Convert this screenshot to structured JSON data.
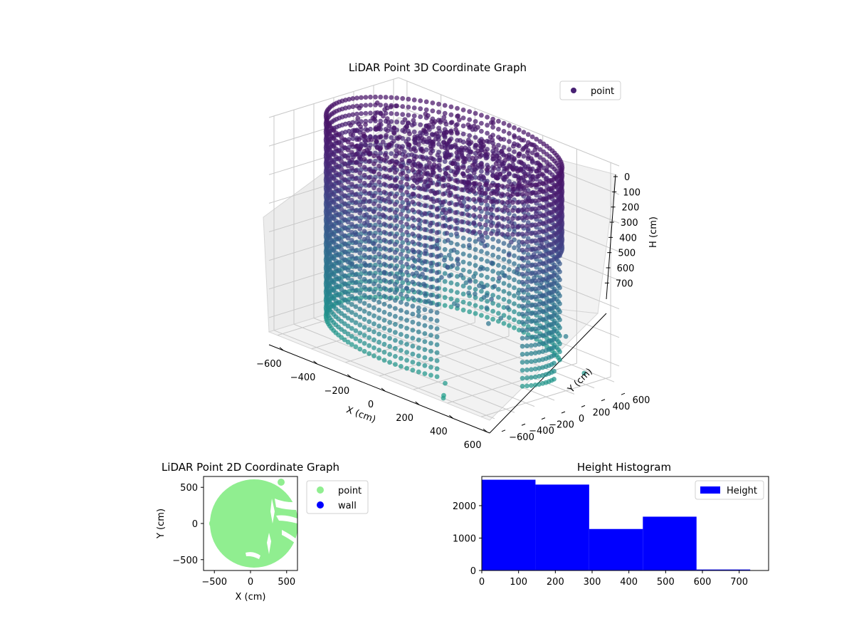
{
  "chart_data": [
    {
      "type": "scatter",
      "projection": "3d",
      "title": "LiDAR Point 3D Coordinate Graph",
      "xlabel": "X (cm)",
      "ylabel": "Y (cm)",
      "zlabel": "H (cm)",
      "xticks": [
        "−600",
        "−400",
        "−200",
        "0",
        "200",
        "400",
        "600"
      ],
      "yticks": [
        "−600",
        "−400",
        "−200",
        "0",
        "200",
        "400",
        "600"
      ],
      "zticks": [
        "0",
        "100",
        "200",
        "300",
        "400",
        "500",
        "600",
        "700"
      ],
      "xlim": [
        -650,
        650
      ],
      "ylim": [
        -650,
        650
      ],
      "zlim": [
        0,
        750
      ],
      "z_axis_inverted": true,
      "colormap": "viridis",
      "legend": {
        "placement": "upper-right",
        "entries": [
          {
            "label": "point",
            "color": "#482173"
          }
        ]
      },
      "series": [
        {
          "name": "point",
          "description_of_shape": "cylindrical wall of points of radius about 600 cm spanning H 0–700 cm, with a dense ceiling cluster near H 0–100 cm",
          "wall_radius": 600,
          "height_range": [
            0,
            700
          ],
          "outlier_points": [
            {
              "x": 300,
              "y": -500,
              "h": 720
            },
            {
              "x": 350,
              "y": -600,
              "h": 740
            },
            {
              "x": 360,
              "y": -620,
              "h": 745
            },
            {
              "x": 620,
              "y": 350,
              "h": 700
            },
            {
              "x": 600,
              "y": 200,
              "h": 560
            }
          ]
        }
      ]
    },
    {
      "type": "scatter",
      "title": "LiDAR Point 2D Coordinate Graph",
      "xlabel": "X (cm)",
      "ylabel": "Y (cm)",
      "xticks": [
        "−500",
        "0",
        "500"
      ],
      "yticks": [
        "−500",
        "0",
        "500"
      ],
      "xlim": [
        -650,
        650
      ],
      "ylim": [
        -650,
        650
      ],
      "legend": {
        "placement": "outside-right",
        "entries": [
          {
            "label": "point",
            "color": "#90ee90"
          },
          {
            "label": "wall",
            "color": "#0000ff"
          }
        ]
      },
      "series": [
        {
          "name": "point",
          "color": "#90ee90",
          "description_of_shape": "filled disc of radius about 600 cm centred near (0,0) with a few white gaps on the right side"
        },
        {
          "name": "wall",
          "color": "#0000ff",
          "points": []
        }
      ]
    },
    {
      "type": "bar",
      "subtype": "histogram",
      "title": "Height Histogram",
      "xticks": [
        "0",
        "100",
        "200",
        "300",
        "400",
        "500",
        "600",
        "700"
      ],
      "yticks": [
        "0",
        "1000",
        "2000"
      ],
      "xlim": [
        0,
        780
      ],
      "ylim": [
        0,
        2900
      ],
      "bin_edges": [
        0,
        146,
        292,
        438,
        584,
        730
      ],
      "values": [
        2800,
        2650,
        1280,
        1660,
        30
      ],
      "color": "#0000ff",
      "legend": {
        "placement": "upper-right",
        "entries": [
          {
            "label": "Height",
            "color": "#0000ff"
          }
        ]
      }
    }
  ]
}
